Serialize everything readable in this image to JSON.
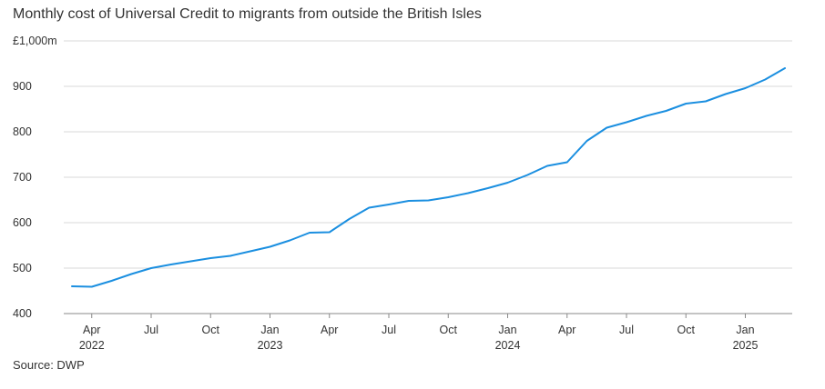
{
  "title": "Monthly cost of Universal Credit to migrants from outside the British Isles",
  "source": "Source: DWP",
  "colors": {
    "line": "#1b8fe0",
    "grid": "#d9d9d9",
    "text": "#333333"
  },
  "chart_data": {
    "type": "line",
    "title": "Monthly cost of Universal Credit to migrants from outside the British Isles",
    "xlabel": "",
    "ylabel": "",
    "ylim": [
      400,
      1000
    ],
    "yticks": [
      400,
      500,
      600,
      700,
      800,
      900,
      1000
    ],
    "ytick_labels": [
      "400",
      "500",
      "600",
      "700",
      "800",
      "900",
      "£1,000m"
    ],
    "grid": true,
    "x_ticks": [
      {
        "label": "Apr",
        "year": "2022",
        "index": 1
      },
      {
        "label": "Jul",
        "year": "",
        "index": 4
      },
      {
        "label": "Oct",
        "year": "",
        "index": 7
      },
      {
        "label": "Jan",
        "year": "2023",
        "index": 10
      },
      {
        "label": "Apr",
        "year": "",
        "index": 13
      },
      {
        "label": "Jul",
        "year": "",
        "index": 16
      },
      {
        "label": "Oct",
        "year": "",
        "index": 19
      },
      {
        "label": "Jan",
        "year": "2024",
        "index": 22
      },
      {
        "label": "Apr",
        "year": "",
        "index": 25
      },
      {
        "label": "Jul",
        "year": "",
        "index": 28
      },
      {
        "label": "Oct",
        "year": "",
        "index": 31
      },
      {
        "label": "Jan",
        "year": "2025",
        "index": 34
      }
    ],
    "x": [
      "2022-03",
      "2022-04",
      "2022-05",
      "2022-06",
      "2022-07",
      "2022-08",
      "2022-09",
      "2022-10",
      "2022-11",
      "2022-12",
      "2023-01",
      "2023-02",
      "2023-03",
      "2023-04",
      "2023-05",
      "2023-06",
      "2023-07",
      "2023-08",
      "2023-09",
      "2023-10",
      "2023-11",
      "2023-12",
      "2024-01",
      "2024-02",
      "2024-03",
      "2024-04",
      "2024-05",
      "2024-06",
      "2024-07",
      "2024-08",
      "2024-09",
      "2024-10",
      "2024-11",
      "2024-12",
      "2025-01",
      "2025-02",
      "2025-03"
    ],
    "series": [
      {
        "values": [
          460,
          459,
          472,
          487,
          500,
          508,
          515,
          522,
          527,
          537,
          547,
          561,
          578,
          579,
          608,
          633,
          640,
          648,
          649,
          656,
          665,
          676,
          688,
          705,
          725,
          733,
          780,
          809,
          821,
          835,
          846,
          862,
          867,
          883,
          896,
          915,
          940
        ]
      }
    ]
  }
}
